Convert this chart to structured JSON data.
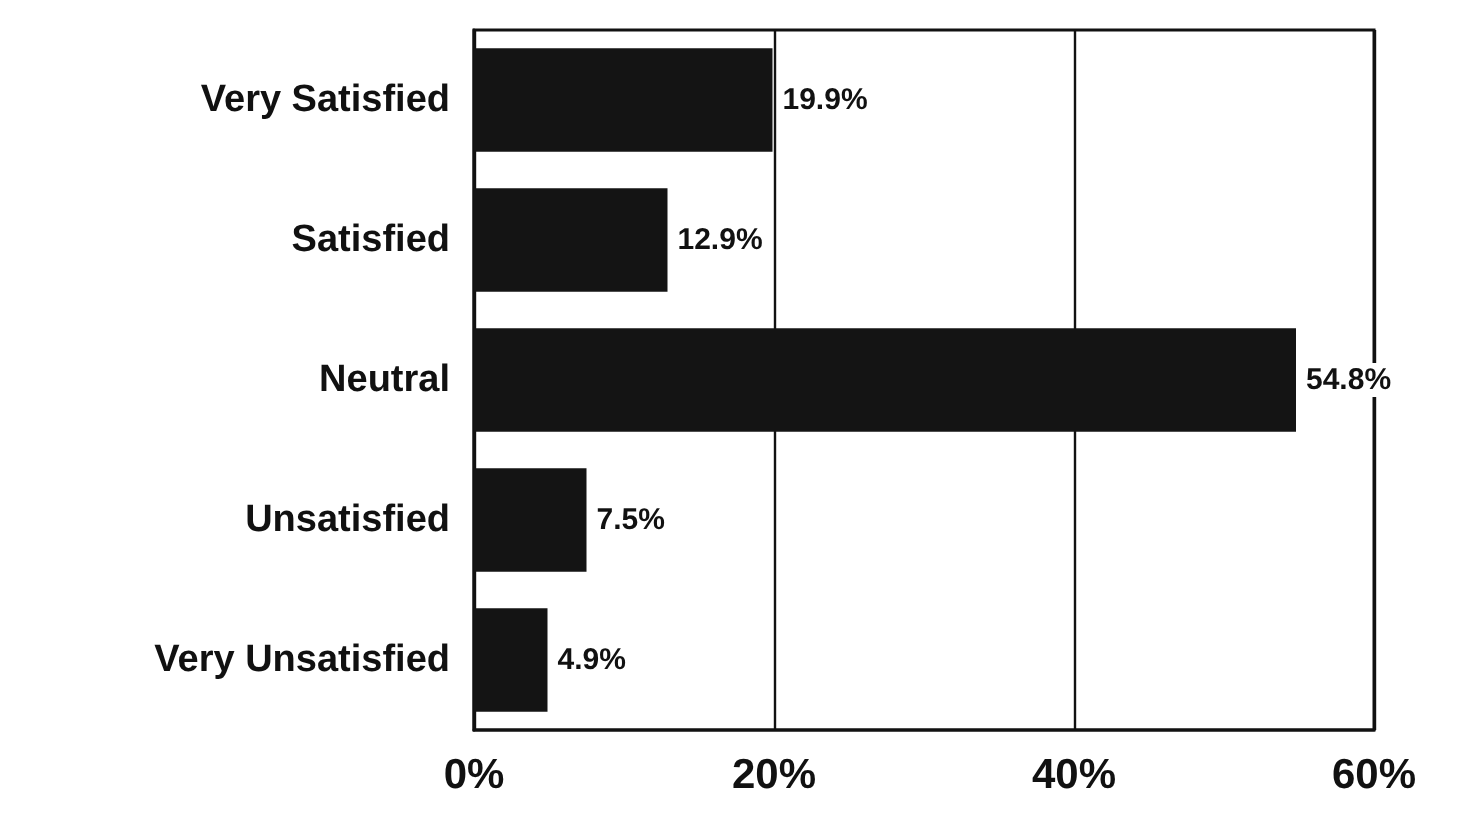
{
  "chart_data": {
    "type": "bar",
    "orientation": "horizontal",
    "categories": [
      "Very Satisfied",
      "Satisfied",
      "Neutral",
      "Unsatisfied",
      "Very Unsatisfied"
    ],
    "values": [
      19.9,
      12.9,
      54.8,
      7.5,
      4.9
    ],
    "value_labels": [
      "19.9%",
      "12.9%",
      "54.8%",
      "7.5%",
      "4.9%"
    ],
    "color": "#141414",
    "xlim": [
      0,
      60
    ],
    "xticks": [
      {
        "value": 0,
        "label": "0%"
      },
      {
        "value": 20,
        "label": "20%"
      },
      {
        "value": 40,
        "label": "40%"
      },
      {
        "value": 60,
        "label": "60%"
      }
    ],
    "grid": "x"
  }
}
